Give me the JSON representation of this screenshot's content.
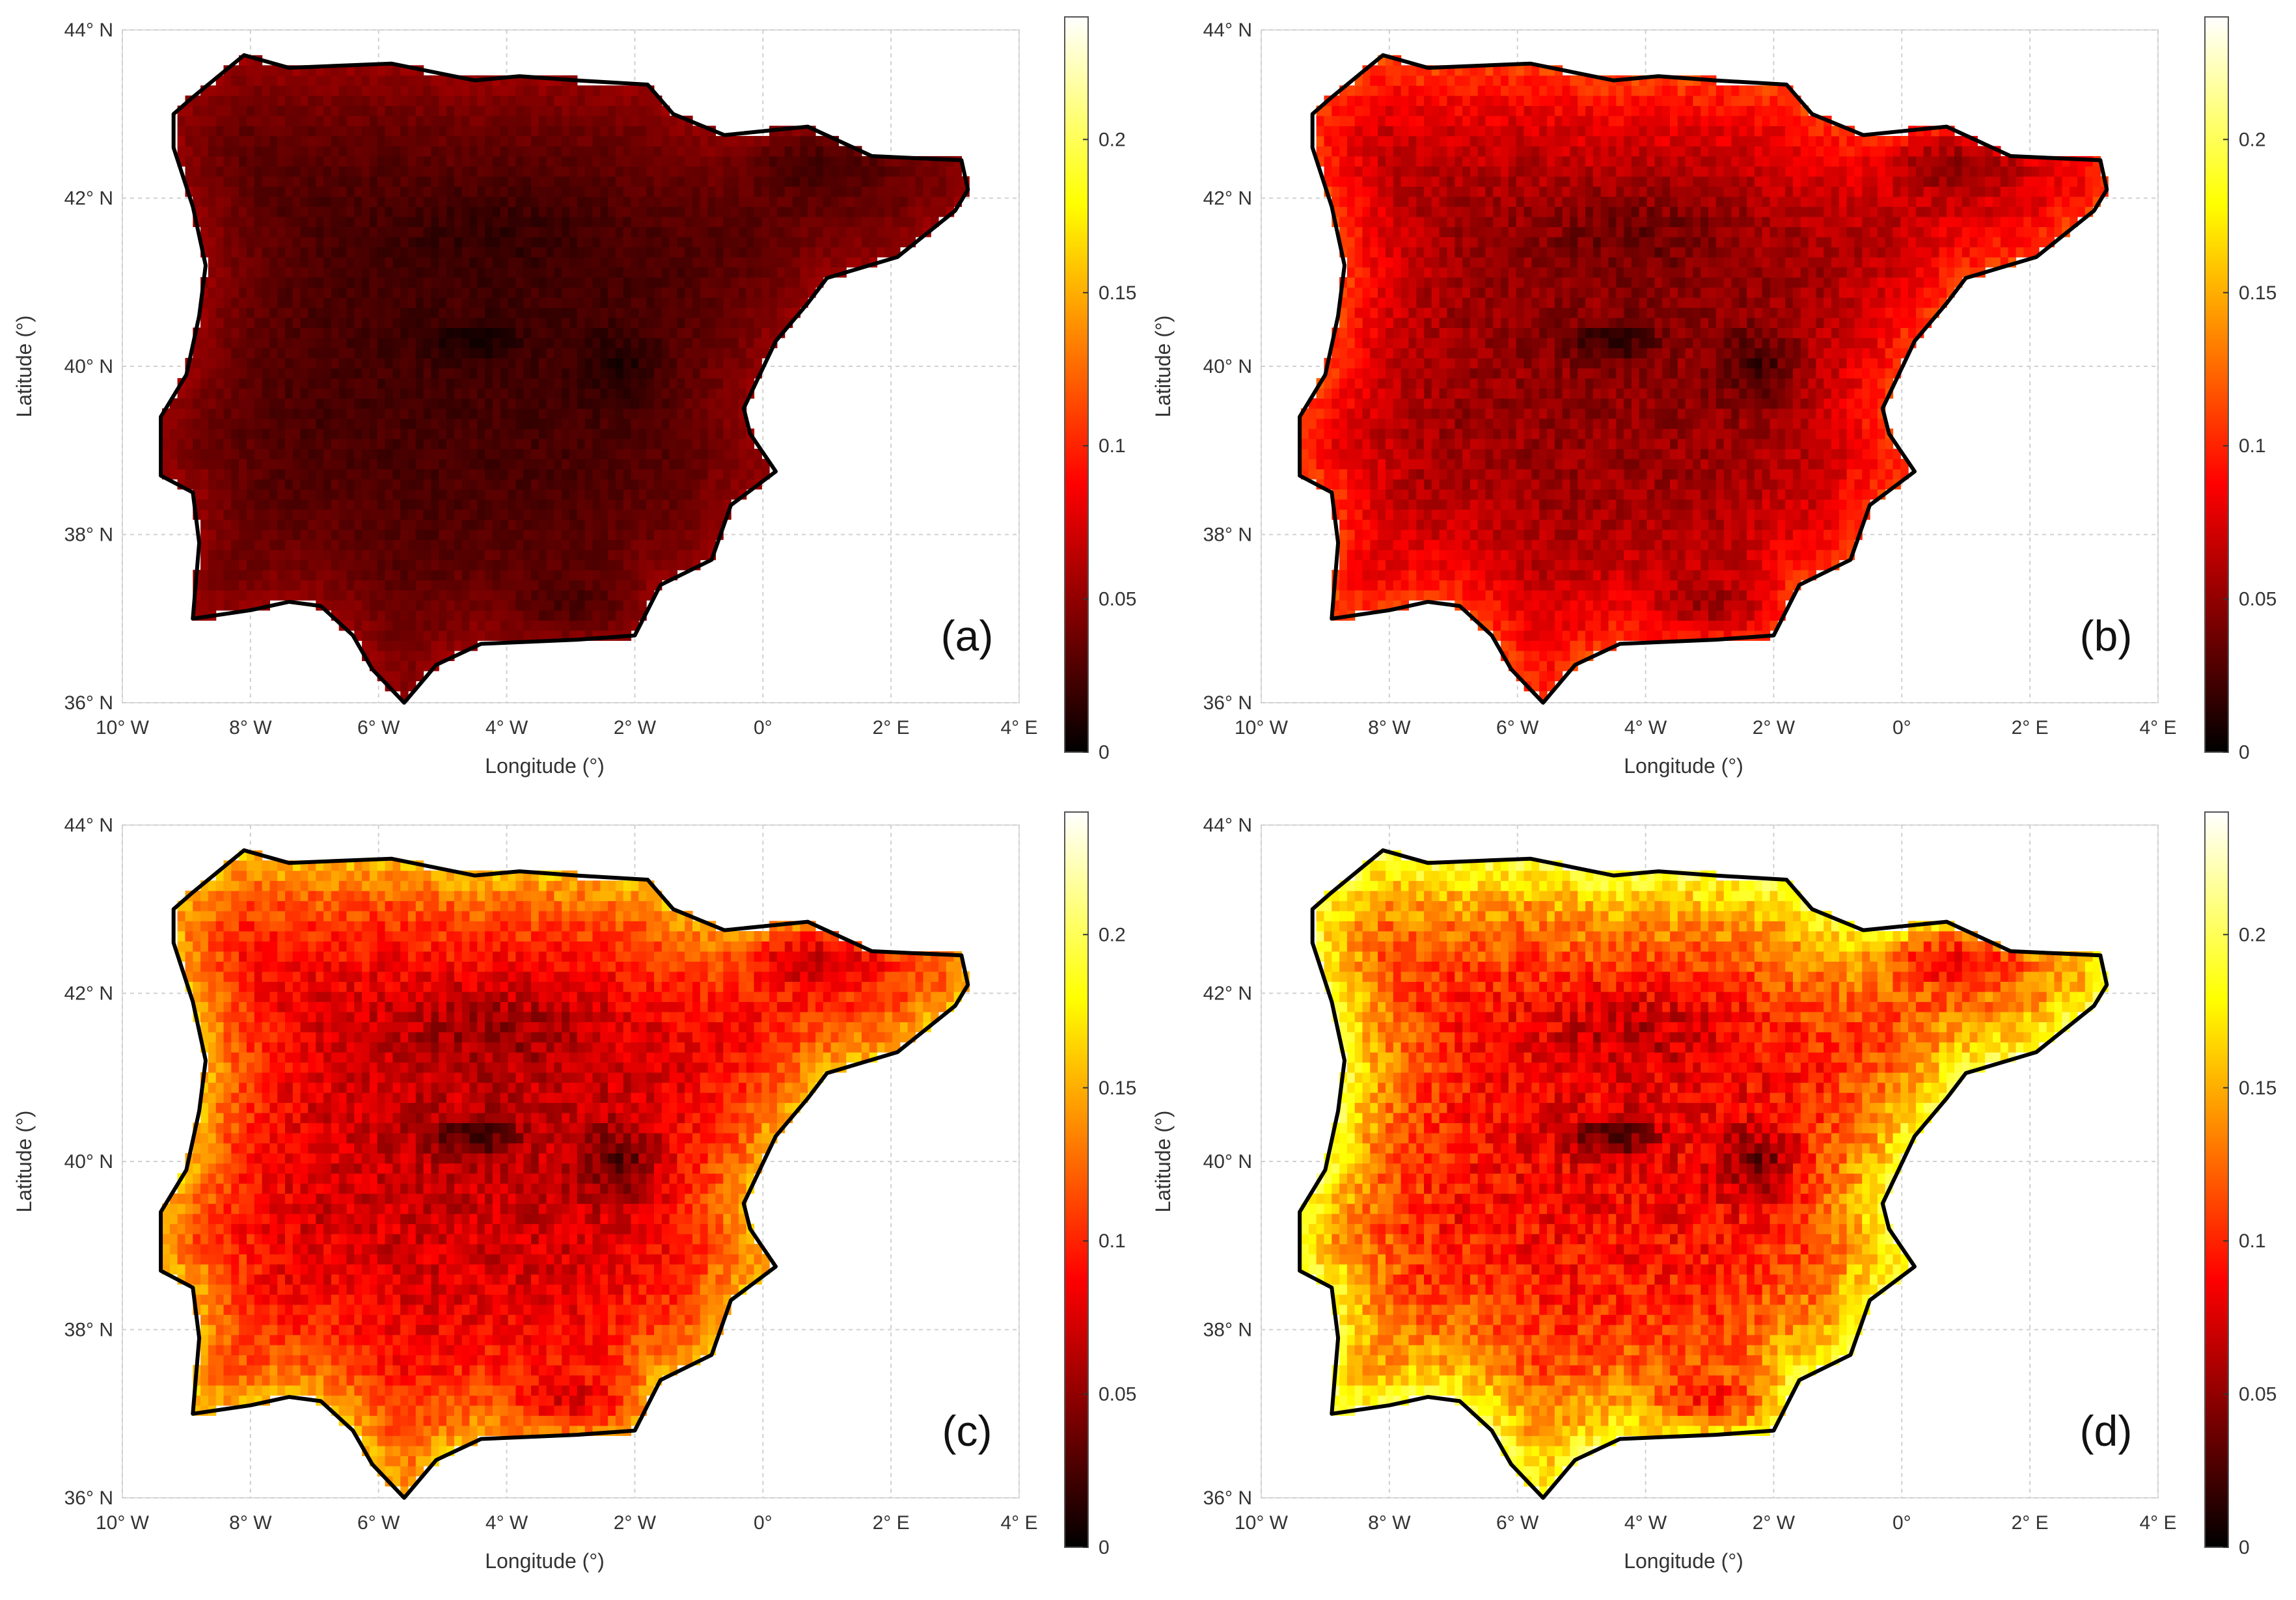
{
  "chart_data": [
    {
      "panel_label": "(a)",
      "type": "heatmap",
      "title": "",
      "xlabel": "Longitude (°)",
      "ylabel": "Latitude (°)",
      "x_ticks": [
        {
          "value": -10,
          "label": "10° W"
        },
        {
          "value": -8,
          "label": "8° W"
        },
        {
          "value": -6,
          "label": "6° W"
        },
        {
          "value": -4,
          "label": "4° W"
        },
        {
          "value": -2,
          "label": "2° W"
        },
        {
          "value": 0,
          "label": "0°"
        },
        {
          "value": 2,
          "label": "2° E"
        },
        {
          "value": 4,
          "label": "4° E"
        }
      ],
      "y_ticks": [
        {
          "value": 36,
          "label": "36° N"
        },
        {
          "value": 38,
          "label": "38° N"
        },
        {
          "value": 40,
          "label": "40° N"
        },
        {
          "value": 42,
          "label": "42° N"
        },
        {
          "value": 44,
          "label": "44° N"
        }
      ],
      "xlim": [
        -10,
        4
      ],
      "ylim": [
        36,
        44
      ],
      "grid": true,
      "colorbar": {
        "range": [
          0,
          0.24
        ],
        "ticks": [
          0,
          0.05,
          0.1,
          0.15,
          0.2
        ],
        "labels": [
          "0",
          "0.05",
          "0.1",
          "0.15",
          "0.2"
        ],
        "colormap": "hot"
      },
      "typical_value": 0.04,
      "value_range_estimate": [
        0.0,
        0.08
      ]
    },
    {
      "panel_label": "(b)",
      "type": "heatmap",
      "title": "",
      "xlabel": "Longitude (°)",
      "ylabel": "Latitude (°)",
      "x_ticks": [
        {
          "value": -10,
          "label": "10° W"
        },
        {
          "value": -8,
          "label": "8° W"
        },
        {
          "value": -6,
          "label": "6° W"
        },
        {
          "value": -4,
          "label": "4° W"
        },
        {
          "value": -2,
          "label": "2° W"
        },
        {
          "value": 0,
          "label": "0°"
        },
        {
          "value": 2,
          "label": "2° E"
        },
        {
          "value": 4,
          "label": "4° E"
        }
      ],
      "y_ticks": [
        {
          "value": 36,
          "label": "36° N"
        },
        {
          "value": 38,
          "label": "38° N"
        },
        {
          "value": 40,
          "label": "40° N"
        },
        {
          "value": 42,
          "label": "42° N"
        },
        {
          "value": 44,
          "label": "44° N"
        }
      ],
      "xlim": [
        -10,
        4
      ],
      "ylim": [
        36,
        44
      ],
      "grid": true,
      "colorbar": {
        "range": [
          0,
          0.24
        ],
        "ticks": [
          0,
          0.05,
          0.1,
          0.15,
          0.2
        ],
        "labels": [
          "0",
          "0.05",
          "0.1",
          "0.15",
          "0.2"
        ],
        "colormap": "hot"
      },
      "typical_value": 0.085,
      "value_range_estimate": [
        0.02,
        0.17
      ]
    },
    {
      "panel_label": "(c)",
      "type": "heatmap",
      "title": "",
      "xlabel": "Longitude (°)",
      "ylabel": "Latitude (°)",
      "x_ticks": [
        {
          "value": -10,
          "label": "10° W"
        },
        {
          "value": -8,
          "label": "8° W"
        },
        {
          "value": -6,
          "label": "6° W"
        },
        {
          "value": -4,
          "label": "4° W"
        },
        {
          "value": -2,
          "label": "2° W"
        },
        {
          "value": 0,
          "label": "0°"
        },
        {
          "value": 2,
          "label": "2° E"
        },
        {
          "value": 4,
          "label": "4° E"
        }
      ],
      "y_ticks": [
        {
          "value": 36,
          "label": "36° N"
        },
        {
          "value": 38,
          "label": "38° N"
        },
        {
          "value": 40,
          "label": "40° N"
        },
        {
          "value": 42,
          "label": "42° N"
        },
        {
          "value": 44,
          "label": "44° N"
        }
      ],
      "xlim": [
        -10,
        4
      ],
      "ylim": [
        36,
        44
      ],
      "grid": true,
      "colorbar": {
        "range": [
          0,
          0.24
        ],
        "ticks": [
          0,
          0.05,
          0.1,
          0.15,
          0.2
        ],
        "labels": [
          "0",
          "0.05",
          "0.1",
          "0.15",
          "0.2"
        ],
        "colormap": "hot"
      },
      "typical_value": 0.12,
      "value_range_estimate": [
        0.03,
        0.21
      ]
    },
    {
      "panel_label": "(d)",
      "type": "heatmap",
      "title": "",
      "xlabel": "Longitude (°)",
      "ylabel": "Latitude (°)",
      "x_ticks": [
        {
          "value": -10,
          "label": "10° W"
        },
        {
          "value": -8,
          "label": "8° W"
        },
        {
          "value": -6,
          "label": "6° W"
        },
        {
          "value": -4,
          "label": "4° W"
        },
        {
          "value": -2,
          "label": "2° W"
        },
        {
          "value": 0,
          "label": "0°"
        },
        {
          "value": 2,
          "label": "2° E"
        },
        {
          "value": 4,
          "label": "4° E"
        }
      ],
      "y_ticks": [
        {
          "value": 36,
          "label": "36° N"
        },
        {
          "value": 38,
          "label": "38° N"
        },
        {
          "value": 40,
          "label": "40° N"
        },
        {
          "value": 42,
          "label": "42° N"
        },
        {
          "value": 44,
          "label": "44° N"
        }
      ],
      "xlim": [
        -10,
        4
      ],
      "ylim": [
        36,
        44
      ],
      "grid": true,
      "colorbar": {
        "range": [
          0,
          0.24
        ],
        "ticks": [
          0,
          0.05,
          0.1,
          0.15,
          0.2
        ],
        "labels": [
          "0",
          "0.05",
          "0.1",
          "0.15",
          "0.2"
        ],
        "colormap": "hot"
      },
      "typical_value": 0.15,
      "value_range_estimate": [
        0.03,
        0.23
      ]
    }
  ],
  "coastline": [
    [
      -8.9,
      43.2
    ],
    [
      -8.1,
      43.7
    ],
    [
      -7.4,
      43.55
    ],
    [
      -5.8,
      43.6
    ],
    [
      -4.5,
      43.4
    ],
    [
      -3.8,
      43.45
    ],
    [
      -2.9,
      43.4
    ],
    [
      -1.8,
      43.35
    ],
    [
      -1.4,
      43.0
    ],
    [
      -0.6,
      42.75
    ],
    [
      0.7,
      42.85
    ],
    [
      1.7,
      42.5
    ],
    [
      3.1,
      42.45
    ],
    [
      3.2,
      42.1
    ],
    [
      3.0,
      41.85
    ],
    [
      2.1,
      41.3
    ],
    [
      1.0,
      41.05
    ],
    [
      0.7,
      40.75
    ],
    [
      0.2,
      40.3
    ],
    [
      -0.3,
      39.5
    ],
    [
      -0.2,
      39.2
    ],
    [
      0.2,
      38.75
    ],
    [
      -0.5,
      38.35
    ],
    [
      -0.8,
      37.7
    ],
    [
      -1.6,
      37.4
    ],
    [
      -2.0,
      36.8
    ],
    [
      -2.9,
      36.75
    ],
    [
      -4.4,
      36.7
    ],
    [
      -5.1,
      36.45
    ],
    [
      -5.6,
      36.0
    ],
    [
      -6.1,
      36.4
    ],
    [
      -6.4,
      36.8
    ],
    [
      -6.9,
      37.15
    ],
    [
      -7.4,
      37.2
    ],
    [
      -8.0,
      37.1
    ],
    [
      -8.9,
      37.0
    ],
    [
      -8.8,
      37.9
    ],
    [
      -8.9,
      38.5
    ],
    [
      -9.4,
      38.7
    ],
    [
      -9.4,
      39.4
    ],
    [
      -9.0,
      39.9
    ],
    [
      -8.8,
      40.6
    ],
    [
      -8.7,
      41.2
    ],
    [
      -8.9,
      41.9
    ],
    [
      -9.2,
      42.6
    ],
    [
      -9.2,
      43.0
    ]
  ]
}
